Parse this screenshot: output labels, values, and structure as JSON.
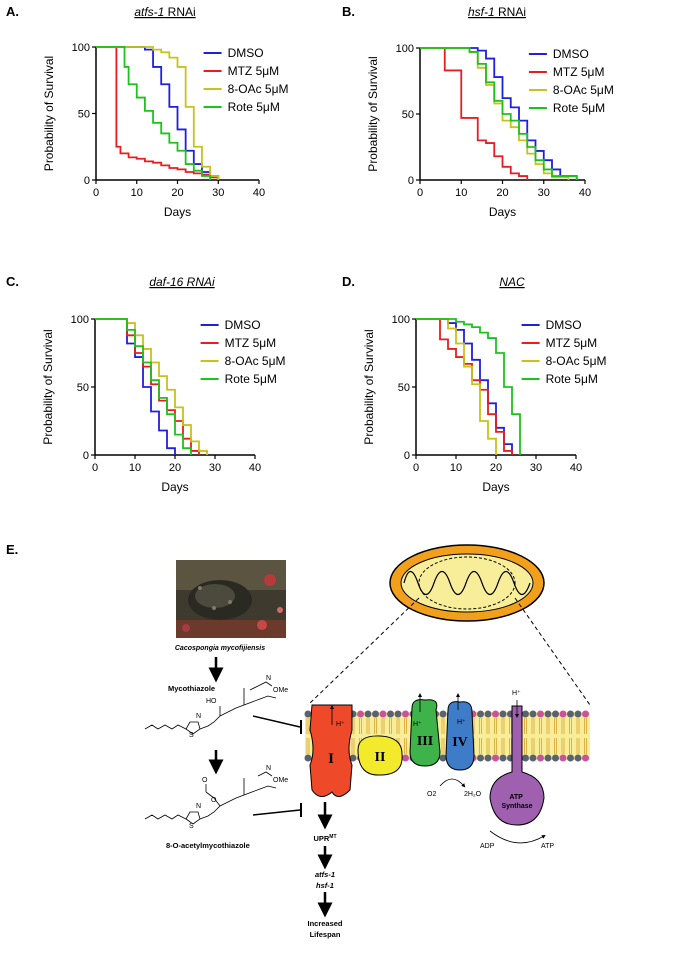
{
  "figure": {
    "panels": [
      {
        "letter": "A.",
        "title_italic": "atfs-1",
        "title_rest": " RNAi"
      },
      {
        "letter": "B.",
        "title_italic": "hsf-1",
        "title_rest": " RNAi"
      },
      {
        "letter": "C.",
        "title_italic": "daf-16 RNAi",
        "title_rest": ""
      },
      {
        "letter": "D.",
        "title_italic": "NAC",
        "title_rest": ""
      }
    ],
    "panel_e_letter": "E."
  },
  "chart_data": [
    {
      "type": "line",
      "step": true,
      "title": "atfs-1 RNAi",
      "xlabel": "Days",
      "ylabel": "Probability of Survival",
      "xlim": [
        0,
        40
      ],
      "ylim": [
        0,
        100
      ],
      "xticks": [
        0,
        10,
        20,
        30,
        40
      ],
      "yticks": [
        0,
        50,
        100
      ],
      "legend_position": "top-right",
      "series": [
        {
          "name": "DMSO",
          "color": "#1f1fe0",
          "points": [
            [
              0,
              100
            ],
            [
              6,
              100
            ],
            [
              12,
              98
            ],
            [
              14,
              85
            ],
            [
              16,
              72
            ],
            [
              18,
              55
            ],
            [
              20,
              38
            ],
            [
              22,
              22
            ],
            [
              24,
              12
            ],
            [
              26,
              6
            ],
            [
              28,
              3
            ],
            [
              30,
              0
            ]
          ]
        },
        {
          "name": "MTZ 5μM",
          "color": "#e81e1e",
          "points": [
            [
              0,
              100
            ],
            [
              4,
              100
            ],
            [
              5,
              25
            ],
            [
              6,
              20
            ],
            [
              8,
              17
            ],
            [
              10,
              16
            ],
            [
              12,
              14
            ],
            [
              14,
              13
            ],
            [
              16,
              11
            ],
            [
              18,
              9
            ],
            [
              20,
              8
            ],
            [
              22,
              6
            ],
            [
              24,
              5
            ],
            [
              26,
              4
            ],
            [
              28,
              2
            ],
            [
              30,
              0
            ]
          ]
        },
        {
          "name": "8-OAc 5μM",
          "color": "#c8c21a",
          "points": [
            [
              0,
              100
            ],
            [
              12,
              100
            ],
            [
              14,
              98
            ],
            [
              16,
              96
            ],
            [
              18,
              92
            ],
            [
              20,
              85
            ],
            [
              22,
              55
            ],
            [
              24,
              25
            ],
            [
              26,
              10
            ],
            [
              28,
              3
            ],
            [
              30,
              0
            ]
          ]
        },
        {
          "name": "Rote 5μM",
          "color": "#1ec21e",
          "points": [
            [
              0,
              100
            ],
            [
              6,
              100
            ],
            [
              7,
              85
            ],
            [
              8,
              72
            ],
            [
              10,
              62
            ],
            [
              12,
              52
            ],
            [
              14,
              43
            ],
            [
              16,
              35
            ],
            [
              18,
              28
            ],
            [
              20,
              22
            ],
            [
              22,
              12
            ],
            [
              24,
              7
            ],
            [
              26,
              3
            ],
            [
              28,
              0
            ]
          ]
        }
      ]
    },
    {
      "type": "line",
      "step": true,
      "title": "hsf-1 RNAi",
      "xlabel": "Days",
      "ylabel": "Probability of Survival",
      "xlim": [
        0,
        40
      ],
      "ylim": [
        0,
        100
      ],
      "xticks": [
        0,
        10,
        20,
        30,
        40
      ],
      "yticks": [
        0,
        50,
        100
      ],
      "legend_position": "top-right",
      "series": [
        {
          "name": "DMSO",
          "color": "#1f1fe0",
          "points": [
            [
              0,
              100
            ],
            [
              12,
              100
            ],
            [
              14,
              98
            ],
            [
              16,
              92
            ],
            [
              18,
              78
            ],
            [
              20,
              62
            ],
            [
              22,
              55
            ],
            [
              24,
              45
            ],
            [
              26,
              30
            ],
            [
              28,
              22
            ],
            [
              30,
              15
            ],
            [
              32,
              8
            ],
            [
              34,
              3
            ],
            [
              38,
              0
            ]
          ]
        },
        {
          "name": "MTZ 5μM",
          "color": "#e81e1e",
          "points": [
            [
              0,
              100
            ],
            [
              4,
              100
            ],
            [
              6,
              83
            ],
            [
              10,
              47
            ],
            [
              14,
              30
            ],
            [
              16,
              28
            ],
            [
              18,
              18
            ],
            [
              20,
              10
            ],
            [
              22,
              5
            ],
            [
              24,
              3
            ],
            [
              26,
              0
            ]
          ]
        },
        {
          "name": "8-OAc 5μM",
          "color": "#c8c21a",
          "points": [
            [
              0,
              100
            ],
            [
              10,
              100
            ],
            [
              12,
              97
            ],
            [
              14,
              85
            ],
            [
              16,
              72
            ],
            [
              18,
              58
            ],
            [
              20,
              45
            ],
            [
              22,
              40
            ],
            [
              24,
              30
            ],
            [
              26,
              20
            ],
            [
              28,
              12
            ],
            [
              30,
              5
            ],
            [
              32,
              2
            ],
            [
              36,
              0
            ]
          ]
        },
        {
          "name": "Rote 5μM",
          "color": "#1ec21e",
          "points": [
            [
              0,
              100
            ],
            [
              10,
              100
            ],
            [
              12,
              97
            ],
            [
              14,
              88
            ],
            [
              16,
              74
            ],
            [
              18,
              60
            ],
            [
              20,
              50
            ],
            [
              22,
              45
            ],
            [
              24,
              35
            ],
            [
              26,
              25
            ],
            [
              28,
              15
            ],
            [
              30,
              8
            ],
            [
              32,
              3
            ],
            [
              38,
              0
            ]
          ]
        }
      ]
    },
    {
      "type": "line",
      "step": true,
      "title": "daf-16 RNAi",
      "xlabel": "Days",
      "ylabel": "Probability of Survival",
      "xlim": [
        0,
        40
      ],
      "ylim": [
        0,
        100
      ],
      "xticks": [
        0,
        10,
        20,
        30,
        40
      ],
      "yticks": [
        0,
        50,
        100
      ],
      "legend_position": "top-right",
      "series": [
        {
          "name": "DMSO",
          "color": "#1f1fe0",
          "points": [
            [
              0,
              100
            ],
            [
              6,
              100
            ],
            [
              8,
              82
            ],
            [
              10,
              72
            ],
            [
              12,
              50
            ],
            [
              14,
              32
            ],
            [
              16,
              18
            ],
            [
              18,
              5
            ],
            [
              20,
              0
            ]
          ]
        },
        {
          "name": "MTZ 5μM",
          "color": "#e81e1e",
          "points": [
            [
              0,
              100
            ],
            [
              6,
              100
            ],
            [
              8,
              88
            ],
            [
              10,
              75
            ],
            [
              12,
              65
            ],
            [
              14,
              52
            ],
            [
              16,
              40
            ],
            [
              18,
              33
            ],
            [
              20,
              25
            ],
            [
              22,
              12
            ],
            [
              24,
              3
            ],
            [
              26,
              0
            ]
          ]
        },
        {
          "name": "8-OAc 5μM",
          "color": "#c8c21a",
          "points": [
            [
              0,
              100
            ],
            [
              6,
              100
            ],
            [
              8,
              97
            ],
            [
              10,
              88
            ],
            [
              12,
              78
            ],
            [
              14,
              68
            ],
            [
              16,
              58
            ],
            [
              18,
              48
            ],
            [
              20,
              35
            ],
            [
              22,
              22
            ],
            [
              24,
              10
            ],
            [
              26,
              3
            ],
            [
              28,
              0
            ]
          ]
        },
        {
          "name": "Rote 5μM",
          "color": "#1ec21e",
          "points": [
            [
              0,
              100
            ],
            [
              6,
              100
            ],
            [
              8,
              92
            ],
            [
              10,
              80
            ],
            [
              12,
              68
            ],
            [
              14,
              55
            ],
            [
              16,
              42
            ],
            [
              18,
              30
            ],
            [
              20,
              15
            ],
            [
              22,
              5
            ],
            [
              24,
              0
            ]
          ]
        }
      ]
    },
    {
      "type": "line",
      "step": true,
      "title": "NAC",
      "xlabel": "Days",
      "ylabel": "Probability of Survival",
      "xlim": [
        0,
        40
      ],
      "ylim": [
        0,
        100
      ],
      "xticks": [
        0,
        10,
        20,
        30,
        40
      ],
      "yticks": [
        0,
        50,
        100
      ],
      "legend_position": "top-right",
      "series": [
        {
          "name": "DMSO",
          "color": "#1f1fe0",
          "points": [
            [
              0,
              100
            ],
            [
              6,
              100
            ],
            [
              8,
              97
            ],
            [
              10,
              92
            ],
            [
              12,
              82
            ],
            [
              14,
              70
            ],
            [
              16,
              55
            ],
            [
              18,
              38
            ],
            [
              20,
              20
            ],
            [
              22,
              8
            ],
            [
              24,
              0
            ]
          ]
        },
        {
          "name": "MTZ 5μM",
          "color": "#e81e1e",
          "points": [
            [
              0,
              100
            ],
            [
              4,
              100
            ],
            [
              6,
              85
            ],
            [
              8,
              78
            ],
            [
              10,
              72
            ],
            [
              12,
              67
            ],
            [
              14,
              55
            ],
            [
              16,
              48
            ],
            [
              18,
              30
            ],
            [
              20,
              17
            ],
            [
              22,
              3
            ],
            [
              24,
              0
            ]
          ]
        },
        {
          "name": "8-OAc 5μM",
          "color": "#c8c21a",
          "points": [
            [
              0,
              100
            ],
            [
              6,
              100
            ],
            [
              8,
              93
            ],
            [
              10,
              82
            ],
            [
              12,
              65
            ],
            [
              14,
              52
            ],
            [
              16,
              25
            ],
            [
              18,
              12
            ],
            [
              20,
              0
            ]
          ]
        },
        {
          "name": "Rote 5μM",
          "color": "#1ec21e",
          "points": [
            [
              0,
              100
            ],
            [
              8,
              100
            ],
            [
              10,
              98
            ],
            [
              12,
              96
            ],
            [
              14,
              94
            ],
            [
              16,
              90
            ],
            [
              18,
              86
            ],
            [
              20,
              75
            ],
            [
              22,
              50
            ],
            [
              24,
              30
            ],
            [
              26,
              0
            ]
          ]
        }
      ]
    }
  ],
  "diagram": {
    "photo_caption": "Cacospongia mycofijiensis",
    "compound1": "Mycothiazole",
    "compound2": "8-O-acetylmycothiazole",
    "ome": "OMe",
    "methyl_o": "O",
    "h_label": "H",
    "n_label": "N",
    "s_label": "S",
    "ho_label": "HO",
    "o_label": "O",
    "complex_labels": [
      "I",
      "II",
      "III",
      "IV"
    ],
    "proton": "H⁺",
    "atp_synthase": "ATP Synthase",
    "o2": "O2",
    "h2o": "2H₂O",
    "adp": "ADP",
    "atp": "ATP",
    "upr": "UPR",
    "upr_sup": "MT",
    "gene1": "atfs-1",
    "gene2": "hsf-1",
    "increased": "Increased",
    "lifespan": "Lifespan",
    "colors": {
      "complex_I": "#ee4a2a",
      "complex_II": "#f2ea2a",
      "complex_III": "#3db34a",
      "complex_IV": "#3f7cc7",
      "atp_synthase": "#a060b0",
      "mito_outer": "#f2a01c",
      "mito_inner": "#f8ee9a"
    }
  }
}
